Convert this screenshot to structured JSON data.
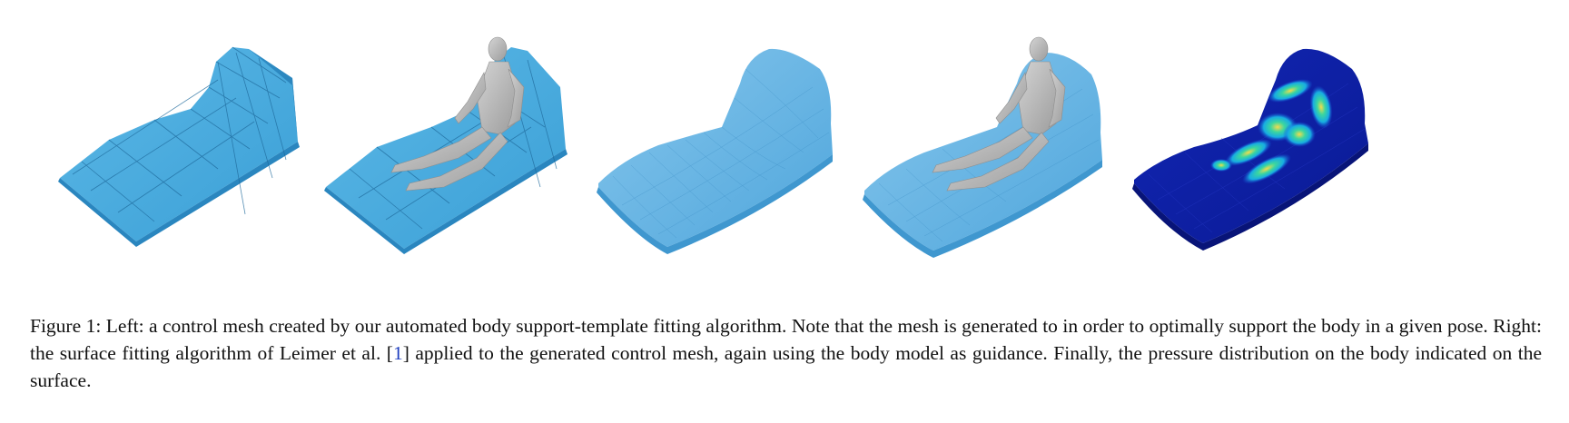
{
  "figure": {
    "caption_part1": "Figure 1: Left: a control mesh created by our automated body support-template fitting algorithm. Note that the mesh is generated to in order to optimally support the body in a given pose. Right: the surface fitting algorithm of Leimer et al. [",
    "citation": "1",
    "caption_part2": "] applied to the generated control mesh, again using the body model as guidance. Finally, the pressure distribution on the body indicated on the surface.",
    "panels": [
      {
        "name": "control-mesh",
        "shows_body": false,
        "style": "coarse-mesh"
      },
      {
        "name": "control-mesh-with-body",
        "shows_body": true,
        "style": "coarse-mesh"
      },
      {
        "name": "fitted-surface",
        "shows_body": false,
        "style": "smooth-surface"
      },
      {
        "name": "fitted-surface-with-body",
        "shows_body": true,
        "style": "smooth-surface"
      },
      {
        "name": "pressure-distribution",
        "shows_body": false,
        "style": "heatmap"
      }
    ],
    "colors": {
      "mesh_blue": "#3fa6dc",
      "mesh_dark": "#2a86bf",
      "surface_blue": "#62b1e2",
      "body_gray": "#b9b9b9",
      "heat_low": "#0b1c9e",
      "heat_high": "#ffe64a"
    }
  }
}
